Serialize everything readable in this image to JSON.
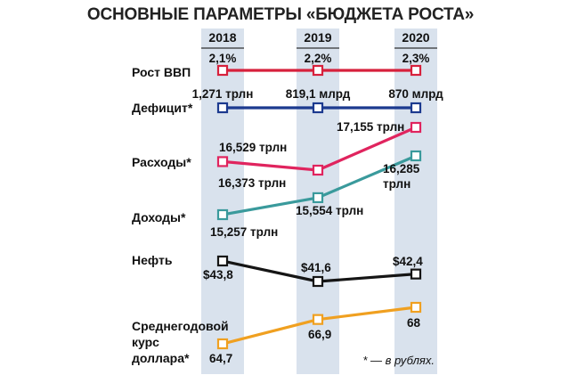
{
  "title": "ОСНОВНЫЕ ПАРАМЕТРЫ «БЮДЖЕТА РОСТА»",
  "footnote": "* — в рублях.",
  "chart_data": {
    "type": "line",
    "title": "ОСНОВНЫЕ ПАРАМЕТРЫ «БЮДЖЕТА РОСТА»",
    "categories": [
      "2018",
      "2019",
      "2020"
    ],
    "grid": false,
    "series": [
      {
        "name": "Рост ВВП",
        "color": "#d7213c",
        "values": [
          2.1,
          2.2,
          2.3
        ],
        "labels": [
          "2,1%",
          "2,2%",
          "2,3%"
        ]
      },
      {
        "name": "Дефицит*",
        "color": "#1c3a8f",
        "values": [
          1.271,
          0.8191,
          0.87
        ],
        "labels": [
          "1,271 трлн",
          "819,1 млрд",
          "870 млрд"
        ]
      },
      {
        "name": "Расходы*",
        "color": "#e0245e",
        "values": [
          16.529,
          16.373,
          17.155
        ],
        "labels": [
          "16,529 трлн",
          "16,373 трлн",
          "17,155 трлн"
        ]
      },
      {
        "name": "Доходы*",
        "color": "#3a9a9c",
        "values": [
          15.257,
          15.554,
          16.285
        ],
        "labels": [
          "15,257 трлн",
          "15,554 трлн",
          "16,285 трлн"
        ]
      },
      {
        "name": "Нефть",
        "color": "#151515",
        "values": [
          43.8,
          41.6,
          42.4
        ],
        "labels": [
          "$43,8",
          "$41,6",
          "$42,4"
        ]
      },
      {
        "name": "Среднегодовой курс доллара*",
        "color": "#f0a020",
        "values": [
          64.7,
          66.9,
          68
        ],
        "labels": [
          "64,7",
          "66,9",
          "68"
        ]
      }
    ]
  }
}
